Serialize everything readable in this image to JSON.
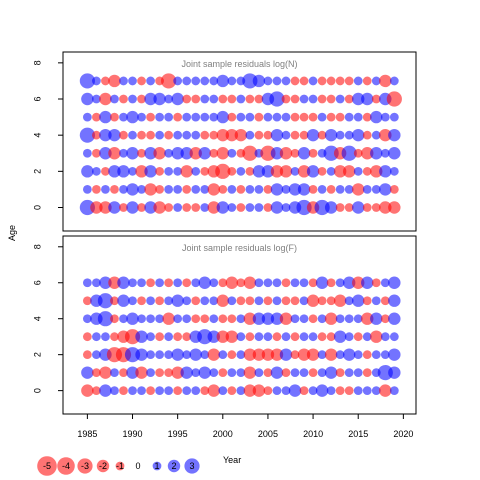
{
  "chart_data": {
    "type": "scatter",
    "style": "bubble",
    "ylabel": "Age",
    "xlabel": "Year",
    "x_ticks": [
      1985,
      1990,
      1995,
      2000,
      2005,
      2010,
      2015,
      2020
    ],
    "y_ticks": [
      0,
      2,
      4,
      6,
      8
    ],
    "xlim": [
      1982.3,
      2021.4
    ],
    "colors": {
      "positive": "#0000ff",
      "negative": "#ff0000"
    },
    "fill_opacity": 0.55,
    "legend": {
      "position": "bottom-left",
      "values": [
        -5,
        -4,
        -3,
        -2,
        -1,
        0,
        1,
        2,
        3
      ],
      "labels": [
        "-5",
        "-4",
        "-3",
        "-2",
        "-1",
        "0",
        "1",
        "2",
        "3"
      ]
    },
    "panels": [
      {
        "title": "Joint sample residuals log(N)",
        "ylim": [
          -1.3,
          8.6
        ],
        "years": [
          1985,
          1986,
          1987,
          1988,
          1989,
          1990,
          1991,
          1992,
          1993,
          1994,
          1995,
          1996,
          1997,
          1998,
          1999,
          2000,
          2001,
          2002,
          2003,
          2004,
          2005,
          2006,
          2007,
          2008,
          2009,
          2010,
          2011,
          2012,
          2013,
          2014,
          2015,
          2016,
          2017,
          2018,
          2019
        ],
        "ages": [
          0,
          1,
          2,
          3,
          4,
          5,
          6,
          7
        ],
        "residuals": [
          [
            3,
            -2,
            -2,
            2,
            -1,
            2,
            -1,
            2,
            -2,
            -1,
            1,
            -1,
            -1,
            1,
            -2,
            2,
            1,
            -1,
            1,
            1,
            -1,
            2,
            1,
            2,
            3,
            -2,
            3,
            2,
            -1,
            -1,
            2,
            -1,
            -1,
            -2,
            -2
          ],
          [
            1,
            -1,
            1,
            -1,
            1,
            2,
            1,
            -2,
            -1,
            1,
            1,
            -1,
            1,
            1,
            -2,
            -1,
            1,
            -1,
            1,
            1,
            -1,
            2,
            1,
            2,
            2,
            -1,
            1,
            -1,
            1,
            1,
            -2,
            1,
            1,
            2,
            -1
          ],
          [
            2,
            1,
            -1,
            2,
            2,
            1,
            -2,
            2,
            -1,
            1,
            1,
            -2,
            1,
            -1,
            -2,
            -3,
            -1,
            1,
            -1,
            2,
            2,
            -2,
            -2,
            1,
            -2,
            2,
            -1,
            1,
            -2,
            -2,
            1,
            -1,
            -2,
            2,
            1
          ],
          [
            1,
            -1,
            2,
            -2,
            1,
            2,
            -1,
            2,
            -2,
            1,
            2,
            2,
            -2,
            2,
            -1,
            -2,
            1,
            -1,
            -3,
            1,
            -3,
            2,
            -2,
            -1,
            2,
            -1,
            1,
            3,
            -2,
            3,
            -1,
            -2,
            2,
            1,
            2
          ],
          [
            3,
            -1,
            2,
            2,
            -1,
            1,
            -1,
            -1,
            1,
            -1,
            1,
            1,
            1,
            -1,
            -1,
            -2,
            -2,
            -2,
            1,
            -1,
            -1,
            2,
            1,
            -1,
            -1,
            2,
            -1,
            2,
            1,
            1,
            2,
            -1,
            1,
            -2,
            2
          ],
          [
            1,
            -1,
            2,
            -1,
            1,
            2,
            1,
            -1,
            1,
            1,
            -1,
            1,
            1,
            1,
            1,
            2,
            -1,
            1,
            1,
            -1,
            1,
            1,
            1,
            -1,
            -1,
            -1,
            1,
            -1,
            -1,
            1,
            1,
            -1,
            2,
            1,
            1
          ],
          [
            2,
            1,
            -2,
            1,
            -1,
            1,
            -1,
            2,
            2,
            1,
            2,
            -1,
            -1,
            1,
            1,
            -1,
            -1,
            1,
            -1,
            -1,
            2,
            3,
            -1,
            -1,
            1,
            1,
            -1,
            -1,
            1,
            -1,
            2,
            2,
            -1,
            2,
            -3
          ],
          [
            3,
            1,
            -1,
            -2,
            1,
            1,
            -1,
            1,
            -1,
            -3,
            1,
            1,
            1,
            1,
            1,
            2,
            1,
            1,
            3,
            2,
            1,
            1,
            1,
            -1,
            -1,
            1,
            -1,
            -1,
            -1,
            -1,
            1,
            -1,
            1,
            -2,
            1
          ]
        ]
      },
      {
        "title": "Joint sample residuals log(F)",
        "ylim": [
          -1.3,
          8.6
        ],
        "years": [
          1985,
          1986,
          1987,
          1988,
          1989,
          1990,
          1991,
          1992,
          1993,
          1994,
          1995,
          1996,
          1997,
          1998,
          1999,
          2000,
          2001,
          2002,
          2003,
          2004,
          2005,
          2006,
          2007,
          2008,
          2009,
          2010,
          2011,
          2012,
          2013,
          2014,
          2015,
          2016,
          2017,
          2018,
          2019
        ],
        "ages": [
          0,
          1,
          2,
          3,
          4,
          5,
          6
        ],
        "residuals": [
          [
            -2,
            -1,
            2,
            1,
            -1,
            1,
            1,
            -1,
            1,
            1,
            -1,
            1,
            1,
            -1,
            -2,
            1,
            -1,
            1,
            -2,
            -2,
            -1,
            1,
            1,
            2,
            -1,
            1,
            2,
            1,
            -1,
            -1,
            1,
            1,
            1,
            -2,
            1
          ],
          [
            2,
            -1,
            -2,
            1,
            -1,
            2,
            -2,
            1,
            -1,
            -1,
            -2,
            2,
            1,
            2,
            1,
            -1,
            1,
            1,
            -2,
            1,
            -1,
            2,
            -1,
            1,
            1,
            -1,
            1,
            2,
            -1,
            1,
            1,
            -1,
            1,
            3,
            2
          ],
          [
            -1,
            1,
            2,
            -3,
            -3,
            3,
            2,
            1,
            1,
            1,
            2,
            1,
            2,
            1,
            -2,
            1,
            -1,
            1,
            -2,
            -2,
            -2,
            -2,
            2,
            -1,
            -2,
            -2,
            1,
            -2,
            1,
            2,
            1,
            -1,
            1,
            1,
            2
          ],
          [
            -1,
            1,
            1,
            -1,
            -2,
            -3,
            2,
            1,
            -1,
            1,
            -1,
            -1,
            2,
            3,
            2,
            -2,
            -2,
            1,
            -1,
            1,
            1,
            -1,
            1,
            -1,
            1,
            1,
            -1,
            -1,
            2,
            1,
            -1,
            1,
            -2,
            1,
            1
          ],
          [
            1,
            2,
            3,
            -1,
            1,
            2,
            1,
            1,
            1,
            -2,
            1,
            1,
            -1,
            -1,
            1,
            -1,
            -1,
            1,
            -2,
            2,
            2,
            2,
            -2,
            1,
            1,
            -1,
            1,
            -2,
            1,
            1,
            1,
            -2,
            2,
            -1,
            2
          ],
          [
            -1,
            2,
            3,
            -1,
            2,
            1,
            -1,
            1,
            -1,
            1,
            2,
            1,
            -1,
            1,
            1,
            -2,
            1,
            -1,
            -1,
            1,
            -1,
            1,
            -1,
            -1,
            1,
            -2,
            -1,
            -1,
            -2,
            1,
            2,
            -1,
            1,
            -1,
            2
          ],
          [
            1,
            1,
            2,
            -2,
            2,
            1,
            1,
            -1,
            1,
            -1,
            1,
            -1,
            1,
            2,
            1,
            -1,
            -2,
            -1,
            -2,
            1,
            1,
            1,
            -1,
            1,
            1,
            -1,
            2,
            -1,
            1,
            2,
            -2,
            2,
            -1,
            1,
            2
          ]
        ]
      }
    ]
  }
}
